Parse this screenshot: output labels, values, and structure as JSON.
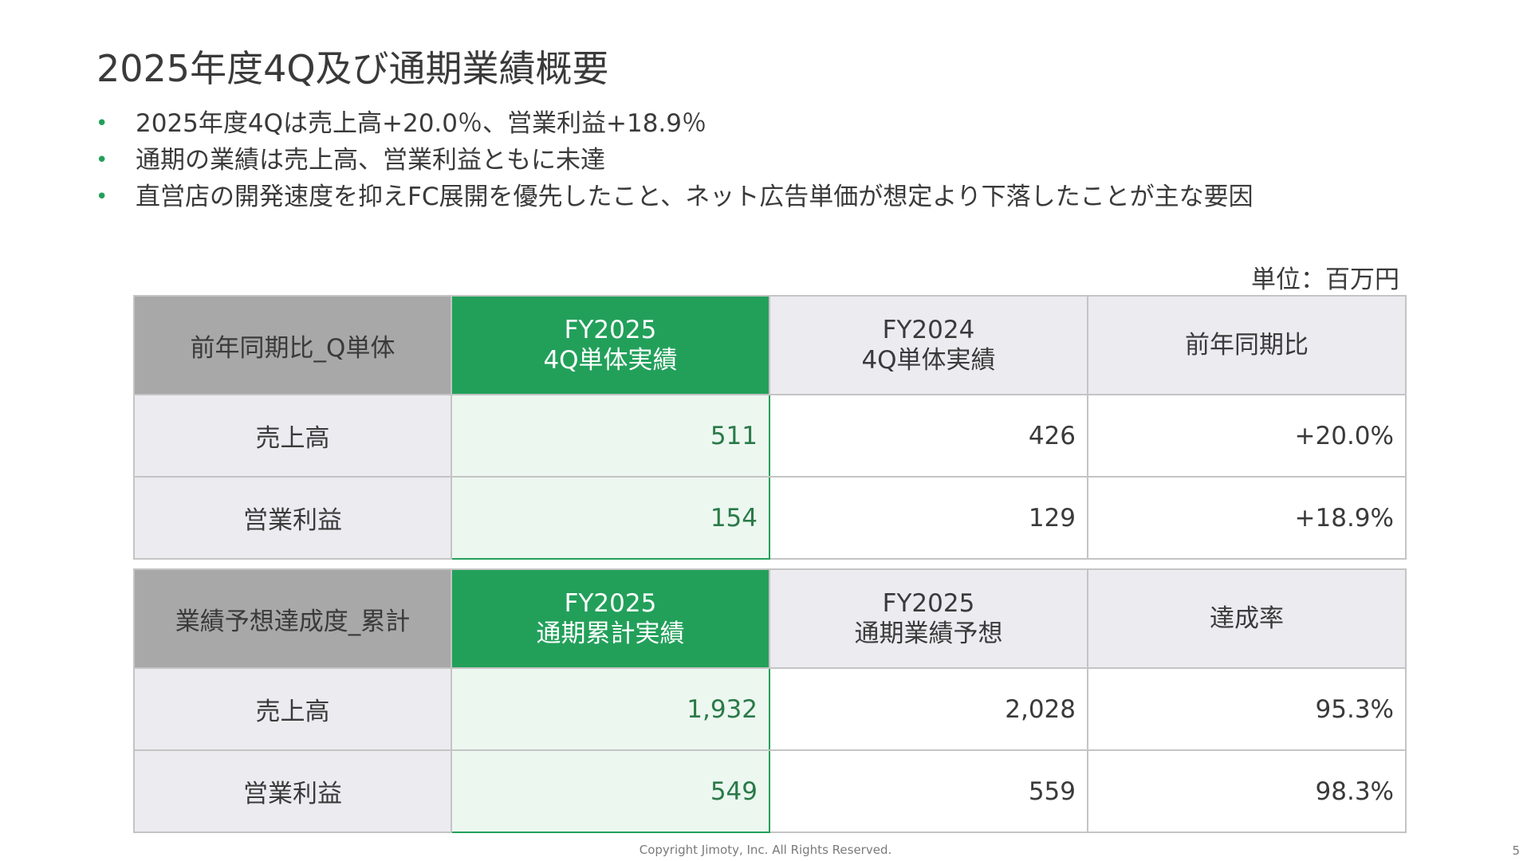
{
  "title": "2025年度4Q及び通期業績概要",
  "bullets": [
    "2025年度4Qは売上高+20.0％、営業利益+18.9％",
    "通期の業績は売上高、営業利益ともに未達",
    "直営店の開発速度を抑えFC展開を優先したこと、ネット広告単価が想定より下落したことが主な要因"
  ],
  "bullet_marker": "•",
  "unit_label": "単位：百万円",
  "table_quarter": {
    "header": {
      "label": "前年同期比_Q単体",
      "col1_line1": "FY2025",
      "col1_line2": "4Q単体実績",
      "col2_line1": "FY2024",
      "col2_line2": "4Q単体実績",
      "col3": "前年同期比"
    },
    "rows": [
      {
        "label": "売上高",
        "current": "511",
        "previous": "426",
        "ratio": "+20.0%"
      },
      {
        "label": "営業利益",
        "current": "154",
        "previous": "129",
        "ratio": "+18.9%"
      }
    ]
  },
  "table_annual": {
    "header": {
      "label": "業績予想達成度_累計",
      "col1_line1": "FY2025",
      "col1_line2": "通期累計実績",
      "col2_line1": "FY2025",
      "col2_line2": "通期業績予想",
      "col3": "達成率"
    },
    "rows": [
      {
        "label": "売上高",
        "actual": "1,932",
        "forecast": "2,028",
        "rate": "95.3%"
      },
      {
        "label": "営業利益",
        "actual": "549",
        "forecast": "559",
        "rate": "98.3%"
      }
    ]
  },
  "footer": "Copyright Jimoty, Inc. All Rights Reserved.",
  "page_number": "5",
  "colors": {
    "accent_green": "#22a05a",
    "green_cell_bg": "#ecf7f0",
    "header_gray": "#a8a8a8",
    "light_gray": "#ecebf0"
  }
}
